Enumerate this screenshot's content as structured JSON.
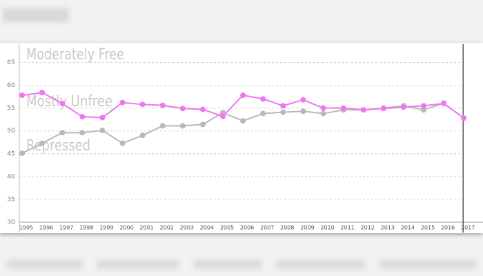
{
  "chart_data": {
    "type": "line",
    "categories": [
      "1995",
      "1996",
      "1997",
      "1998",
      "1999",
      "2000",
      "2001",
      "2002",
      "2003",
      "2004",
      "2005",
      "2006",
      "2007",
      "2008",
      "2009",
      "2010",
      "2011",
      "2012",
      "2013",
      "2014",
      "2015",
      "2016",
      "2017"
    ],
    "series": [
      {
        "color": "#f075f0",
        "values": [
          57.8,
          58.4,
          56,
          53.1,
          52.9,
          56.2,
          55.8,
          55.6,
          54.9,
          54.7,
          53.2,
          57.8,
          57,
          55.5,
          56.8,
          55,
          55,
          54.6,
          54.9,
          55.2,
          55.5,
          56,
          52.8
        ]
      },
      {
        "color": "#b8b8b8",
        "values": [
          45.1,
          47.3,
          49.6,
          49.6,
          50.1,
          47.3,
          49,
          51.1,
          51.1,
          51.4,
          54,
          52.2,
          53.8,
          54.1,
          54.3,
          53.8,
          54.6,
          54.6,
          55,
          55.5,
          54.6,
          56.1,
          52.8
        ]
      }
    ],
    "annotations": [
      "Moderately Free",
      "Mostly Unfree",
      "Repressed"
    ],
    "ylim": [
      30,
      69
    ],
    "yticks": [
      30,
      35,
      40,
      45,
      50,
      55,
      60,
      65
    ],
    "grid": true
  }
}
